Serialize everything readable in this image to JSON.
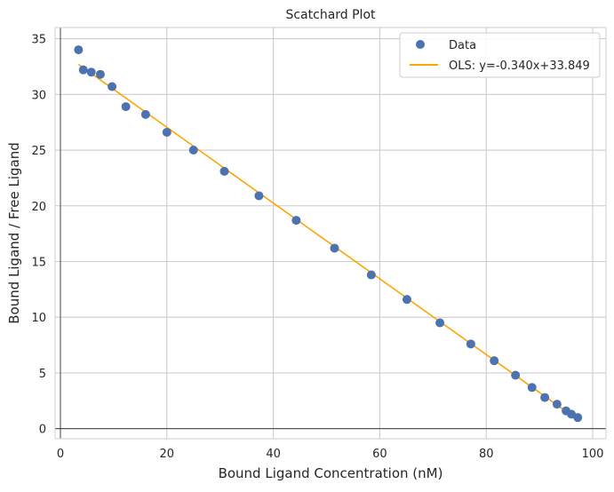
{
  "chart_data": {
    "type": "scatter",
    "title": "Scatchard Plot",
    "xlabel": "Bound Ligand Concentration (nM)",
    "ylabel": "Bound Ligand / Free Ligand",
    "xlim": [
      -1,
      102.5
    ],
    "ylim": [
      -0.9,
      36
    ],
    "xticks": [
      0,
      20,
      40,
      60,
      80,
      100
    ],
    "yticks": [
      0,
      5,
      10,
      15,
      20,
      25,
      30,
      35
    ],
    "grid": true,
    "legend_position": "top-right",
    "series": [
      {
        "name": "Data",
        "kind": "scatter",
        "color": "#4c72b0",
        "x": [
          3.4,
          4.3,
          5.8,
          7.5,
          9.7,
          12.3,
          16.0,
          20.0,
          25.0,
          30.8,
          37.3,
          44.3,
          51.5,
          58.4,
          65.1,
          71.3,
          77.1,
          81.5,
          85.5,
          88.6,
          91.0,
          93.3,
          95.0,
          96.0,
          97.2
        ],
        "y": [
          34.0,
          32.2,
          32.0,
          31.8,
          30.7,
          28.9,
          28.2,
          26.6,
          25.0,
          23.1,
          20.9,
          18.7,
          16.2,
          13.8,
          11.6,
          9.5,
          7.6,
          6.1,
          4.8,
          3.7,
          2.8,
          2.2,
          1.6,
          1.3,
          1.0
        ]
      },
      {
        "name": "OLS: y=-0.340x+33.849",
        "kind": "line",
        "color": "#ffa500",
        "slope": -0.34,
        "intercept": 33.849,
        "x_range": [
          3.4,
          97.2
        ]
      }
    ],
    "reference_lines": [
      {
        "axis": "y",
        "value": 0,
        "color": "#262626"
      },
      {
        "axis": "x",
        "value": 0,
        "color": "#262626"
      }
    ]
  }
}
